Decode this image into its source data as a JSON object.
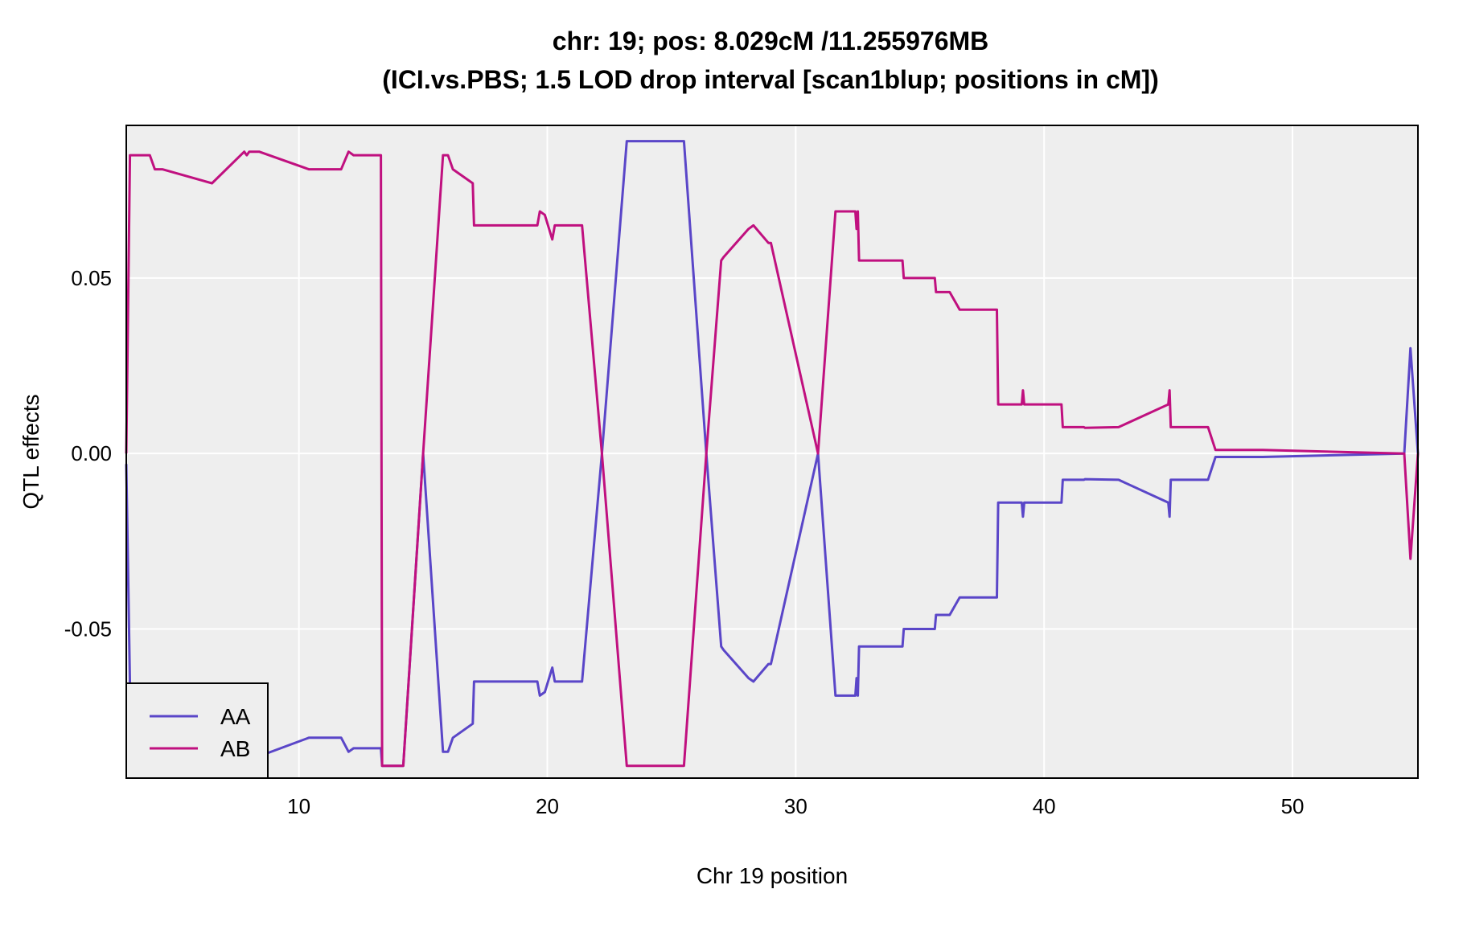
{
  "chart_data": {
    "type": "line",
    "title_line1": "chr: 19; pos: 8.029cM /11.255976MB",
    "title_line2": "(ICI.vs.PBS; 1.5 LOD drop interval [scan1blup; positions in cM])",
    "xlabel": "Chr 19 position",
    "ylabel": "QTL effects",
    "xlim": [
      3.05,
      55.05
    ],
    "ylim": [
      -0.0925,
      0.0935
    ],
    "x_ticks": [
      10,
      20,
      30,
      40,
      50
    ],
    "x_tick_labels": [
      "10",
      "20",
      "30",
      "40",
      "50"
    ],
    "y_ticks": [
      -0.05,
      0.0,
      0.05
    ],
    "y_tick_labels": [
      "-0.05",
      "0.00",
      "0.05"
    ],
    "grid": true,
    "background": "#eeeeee",
    "legend_position": "bottom-left",
    "series": [
      {
        "name": "AA",
        "color": "#5a46c8",
        "x": [
          3.05,
          3.2,
          8.5,
          10.4,
          11.7,
          12.0,
          12.2,
          13.3,
          13.35,
          13.5,
          14.2,
          15.0,
          15.8,
          16.0,
          16.2,
          17.0,
          17.05,
          19.6,
          19.7,
          19.9,
          20.2,
          20.3,
          21.4,
          22.2,
          23.2,
          25.5,
          26.4,
          27.0,
          27.1,
          28.1,
          28.3,
          28.9,
          29.0,
          30.9,
          31.6,
          31.7,
          32.4,
          32.45,
          32.5,
          32.55,
          34.3,
          34.35,
          35.6,
          35.65,
          36.2,
          36.6,
          38.1,
          38.15,
          39.1,
          39.15,
          39.2,
          39.5,
          40.7,
          40.75,
          41.6,
          41.65,
          43.0,
          45.0,
          45.05,
          45.1,
          46.6,
          46.9,
          47.0,
          47.5,
          48.0,
          48.8,
          54.5,
          54.75,
          55.05
        ],
        "y": [
          -0.003,
          -0.066,
          -0.086,
          -0.081,
          -0.081,
          -0.085,
          -0.084,
          -0.084,
          -0.089,
          -0.089,
          -0.089,
          0.0,
          -0.085,
          -0.085,
          -0.081,
          -0.077,
          -0.065,
          -0.065,
          -0.069,
          -0.068,
          -0.061,
          -0.065,
          -0.065,
          0.0,
          0.089,
          0.089,
          0.0,
          -0.055,
          -0.056,
          -0.064,
          -0.065,
          -0.06,
          -0.06,
          0.0,
          -0.069,
          -0.069,
          -0.069,
          -0.064,
          -0.069,
          -0.055,
          -0.055,
          -0.05,
          -0.05,
          -0.046,
          -0.046,
          -0.041,
          -0.041,
          -0.014,
          -0.014,
          -0.018,
          -0.014,
          -0.014,
          -0.014,
          -0.0075,
          -0.0075,
          -0.0073,
          -0.0075,
          -0.014,
          -0.018,
          -0.0075,
          -0.0075,
          -0.001,
          -0.001,
          -0.001,
          -0.001,
          -0.001,
          0.0,
          0.03,
          0.0
        ]
      },
      {
        "name": "AB",
        "color": "#c0107f",
        "x": [
          3.05,
          3.2,
          4.0,
          4.2,
          4.5,
          6.5,
          7.8,
          7.9,
          8.0,
          8.4,
          10.4,
          11.7,
          12.0,
          12.2,
          13.3,
          13.35,
          13.5,
          14.2,
          15.0,
          15.8,
          16.0,
          16.2,
          17.0,
          17.05,
          19.6,
          19.7,
          19.9,
          20.2,
          20.3,
          21.4,
          22.2,
          23.2,
          25.5,
          26.4,
          27.0,
          27.1,
          28.1,
          28.3,
          28.9,
          29.0,
          30.9,
          31.6,
          31.7,
          32.4,
          32.45,
          32.5,
          32.55,
          34.3,
          34.35,
          35.6,
          35.65,
          36.2,
          36.6,
          38.1,
          38.15,
          39.1,
          39.15,
          39.2,
          39.5,
          40.7,
          40.75,
          41.6,
          41.65,
          43.0,
          45.0,
          45.05,
          45.1,
          46.6,
          46.9,
          47.0,
          47.5,
          48.0,
          48.8,
          54.5,
          54.75,
          55.05
        ],
        "y": [
          0.0,
          0.085,
          0.085,
          0.081,
          0.081,
          0.077,
          0.086,
          0.085,
          0.086,
          0.086,
          0.081,
          0.081,
          0.086,
          0.085,
          0.085,
          -0.089,
          -0.089,
          -0.089,
          0.0,
          0.085,
          0.085,
          0.081,
          0.077,
          0.065,
          0.065,
          0.069,
          0.068,
          0.061,
          0.065,
          0.065,
          0.0,
          -0.089,
          -0.089,
          0.0,
          0.055,
          0.056,
          0.064,
          0.065,
          0.06,
          0.06,
          0.0,
          0.069,
          0.069,
          0.069,
          0.064,
          0.069,
          0.055,
          0.055,
          0.05,
          0.05,
          0.046,
          0.046,
          0.041,
          0.041,
          0.014,
          0.014,
          0.018,
          0.014,
          0.014,
          0.014,
          0.0075,
          0.0075,
          0.0073,
          0.0075,
          0.014,
          0.018,
          0.0075,
          0.0075,
          0.001,
          0.001,
          0.001,
          0.001,
          0.001,
          0.0,
          -0.03,
          0.0
        ]
      }
    ]
  }
}
